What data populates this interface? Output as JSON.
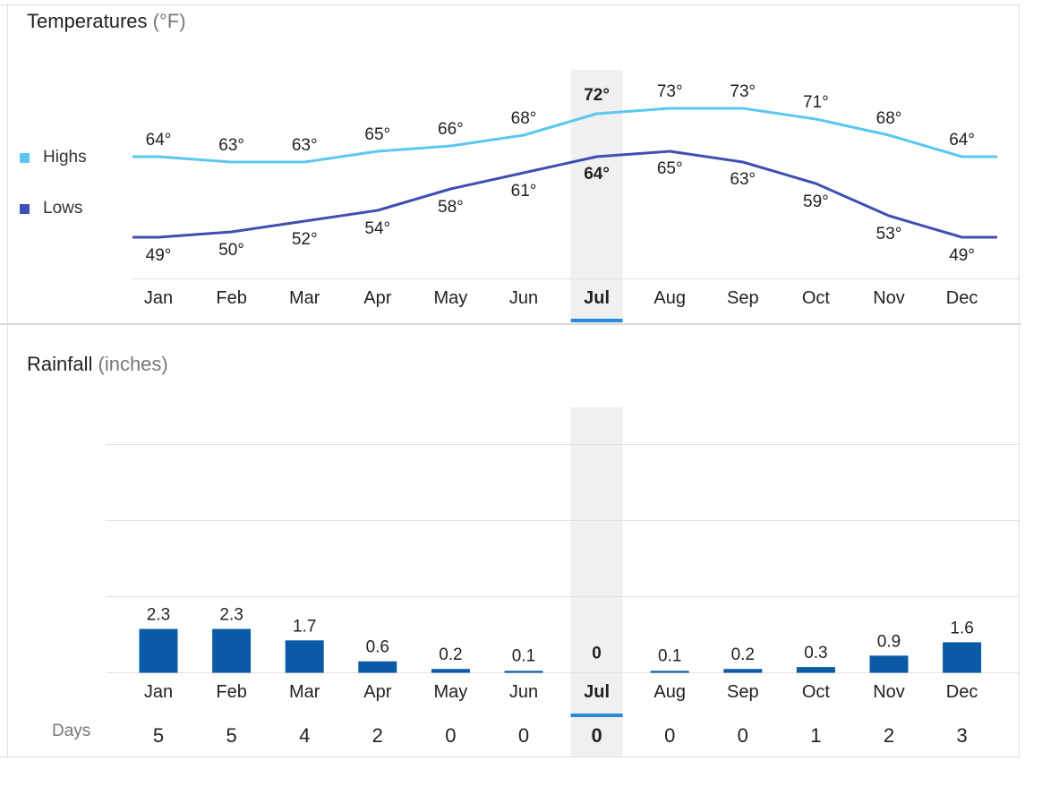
{
  "colors": {
    "highs": "#5ac8f0",
    "lows": "#3f4fb3",
    "bars": "#0a5aa6",
    "selected": "#2a89d8"
  },
  "selected_month": "Jul",
  "temperatures": {
    "title": "Temperatures",
    "unit": "(°F)"
  },
  "rainfall": {
    "title": "Rainfall",
    "unit": "(inches)"
  },
  "legend": {
    "highs_label": "Highs",
    "lows_label": "Lows"
  },
  "days_label": "Days",
  "chart_data": [
    {
      "type": "line",
      "title": "Temperatures (°F)",
      "categories": [
        "Jan",
        "Feb",
        "Mar",
        "Apr",
        "May",
        "Jun",
        "Jul",
        "Aug",
        "Sep",
        "Oct",
        "Nov",
        "Dec"
      ],
      "series": [
        {
          "name": "Highs",
          "values": [
            64,
            63,
            63,
            65,
            66,
            68,
            72,
            73,
            73,
            71,
            68,
            64
          ]
        },
        {
          "name": "Lows",
          "values": [
            49,
            50,
            52,
            54,
            58,
            61,
            64,
            65,
            63,
            59,
            53,
            49
          ]
        }
      ],
      "legend": "left",
      "grid": false
    },
    {
      "type": "bar",
      "title": "Rainfall (inches)",
      "categories": [
        "Jan",
        "Feb",
        "Mar",
        "Apr",
        "May",
        "Jun",
        "Jul",
        "Aug",
        "Sep",
        "Oct",
        "Nov",
        "Dec"
      ],
      "values": [
        2.3,
        2.3,
        1.7,
        0.6,
        0.2,
        0.1,
        0,
        0.1,
        0.2,
        0.3,
        0.9,
        1.6
      ],
      "value_labels": [
        "2.3",
        "2.3",
        "1.7",
        "0.6",
        "0.2",
        "0.1",
        "0",
        "0.1",
        "0.2",
        "0.3",
        "0.9",
        "1.6"
      ],
      "days": [
        5,
        5,
        4,
        2,
        0,
        0,
        0,
        0,
        0,
        1,
        2,
        3
      ],
      "ylim": [
        0,
        8
      ],
      "grid": true
    }
  ]
}
